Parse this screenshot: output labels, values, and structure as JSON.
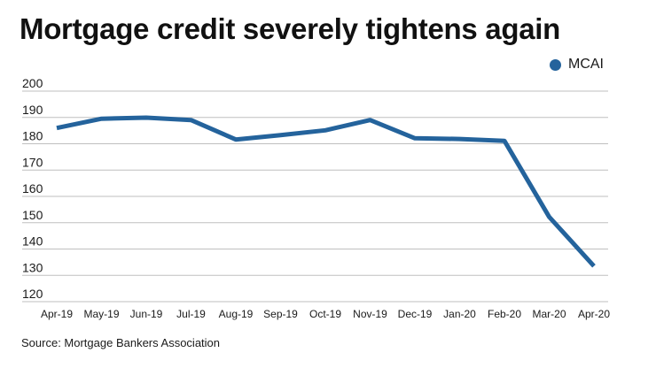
{
  "colors": {
    "series": "#24639c",
    "grid": "#bfbfbf",
    "text": "#1a1a1a"
  },
  "source": "Source: Mortgage Bankers Association",
  "chart_data": {
    "type": "line",
    "title": "Mortgage credit severely tightens again",
    "xlabel": "",
    "ylabel": "",
    "categories": [
      "Apr-19",
      "May-19",
      "Jun-19",
      "Jul-19",
      "Aug-19",
      "Sep-19",
      "Oct-19",
      "Nov-19",
      "Dec-19",
      "Jan-20",
      "Feb-20",
      "Mar-20",
      "Apr-20"
    ],
    "series": [
      {
        "name": "MCAI",
        "values": [
          186.0,
          189.5,
          189.9,
          189.0,
          181.6,
          183.3,
          185.1,
          189.0,
          182.1,
          181.8,
          181.1,
          152.2,
          133.5
        ]
      }
    ],
    "ylim": [
      120,
      200
    ],
    "yticks": [
      120,
      130,
      140,
      150,
      160,
      170,
      180,
      190,
      200
    ],
    "grid": true,
    "legend": "top-right"
  }
}
